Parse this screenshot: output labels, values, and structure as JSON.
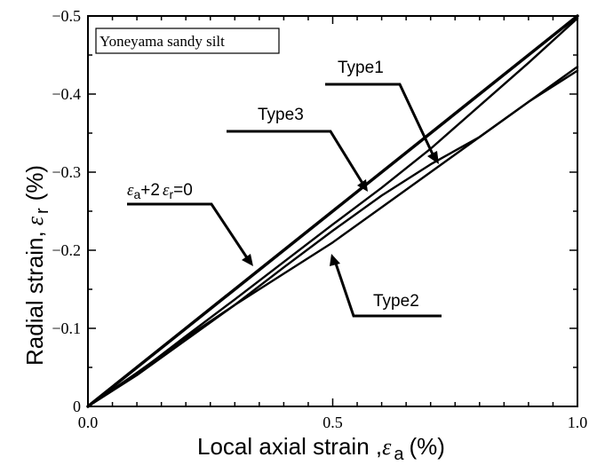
{
  "chart_data": {
    "type": "line",
    "legend_box": "Yoneyama sandy silt",
    "xlabel": {
      "text": "Local axial strain ,",
      "symbol": "ε",
      "sub": "a",
      "unit": "(%)"
    },
    "ylabel": {
      "text": "Radial strain,",
      "symbol": "ε",
      "sub": "r",
      "unit": "(%)"
    },
    "xlim": [
      0.0,
      1.0
    ],
    "ylim": [
      0,
      -0.5
    ],
    "y_reversed": true,
    "x_ticks": [
      {
        "value": 0.0,
        "label": "0.0"
      },
      {
        "value": 0.5,
        "label": "0.5"
      },
      {
        "value": 1.0,
        "label": "1.0"
      }
    ],
    "y_ticks": [
      {
        "value": 0,
        "label": "0"
      },
      {
        "value": -0.1,
        "label": "−0.1"
      },
      {
        "value": -0.2,
        "label": "−0.2"
      },
      {
        "value": -0.3,
        "label": "−0.3"
      },
      {
        "value": -0.4,
        "label": "−0.4"
      },
      {
        "value": -0.5,
        "label": "−0.5"
      }
    ],
    "grid": false,
    "series": [
      {
        "name": "ε a+2 ε r=0",
        "x": [
          0.0,
          1.0
        ],
        "y": [
          0,
          -0.5
        ],
        "style": "thick"
      },
      {
        "name": "Type1",
        "x": [
          0.0,
          0.1,
          0.2,
          0.3,
          0.4,
          0.5,
          0.6,
          0.7,
          0.8,
          0.9,
          1.0
        ],
        "y": [
          0,
          -0.04,
          -0.085,
          -0.13,
          -0.178,
          -0.225,
          -0.27,
          -0.31,
          -0.345,
          -0.39,
          -0.435
        ]
      },
      {
        "name": "Type2",
        "x": [
          0.0,
          0.1,
          0.2,
          0.3,
          0.4,
          0.5,
          0.6,
          0.7,
          0.8,
          0.9,
          1.0
        ],
        "y": [
          0,
          -0.043,
          -0.088,
          -0.13,
          -0.17,
          -0.21,
          -0.255,
          -0.3,
          -0.345,
          -0.39,
          -0.43
        ]
      },
      {
        "name": "Type3",
        "x": [
          0.0,
          0.1,
          0.2,
          0.3,
          0.4,
          0.5,
          0.6,
          0.7,
          0.8,
          0.9,
          1.0
        ],
        "y": [
          0,
          -0.042,
          -0.09,
          -0.137,
          -0.185,
          -0.233,
          -0.28,
          -0.33,
          -0.385,
          -0.44,
          -0.497
        ]
      }
    ],
    "annotations": [
      {
        "id": "type1",
        "text": "Type1"
      },
      {
        "id": "type3",
        "text": "Type3"
      },
      {
        "id": "type2",
        "text": "Type2"
      },
      {
        "id": "line",
        "symbol_a": "ε",
        "sub_a": "a",
        "mid": "+2",
        "symbol_r": "ε",
        "sub_r": "r",
        "tail": "=0"
      }
    ]
  }
}
